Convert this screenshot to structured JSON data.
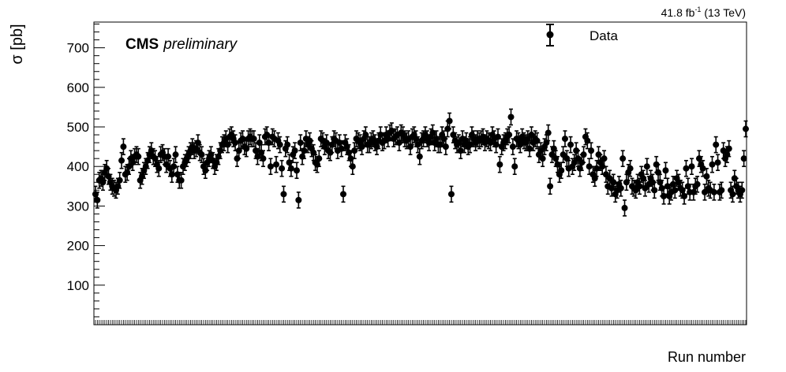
{
  "header": {
    "lumi_value": "41.8 fb",
    "lumi_exp": "-1",
    "lumi_energy": " (13 TeV)"
  },
  "label": {
    "cms": "CMS",
    "preliminary": "preliminary"
  },
  "legend": {
    "entry": "Data"
  },
  "chart_data": {
    "type": "scatter",
    "title": "",
    "xlabel": "Run number",
    "ylabel": "σ [pb]",
    "ylim": [
      0,
      765
    ],
    "yticks": [
      100,
      200,
      300,
      400,
      500,
      600,
      700
    ],
    "legend_position": "top-right",
    "grid": false,
    "series": [
      {
        "name": "Data",
        "values": [
          330,
          315,
          365,
          370,
          360,
          385,
          395,
          375,
          360,
          350,
          345,
          340,
          350,
          365,
          415,
          450,
          380,
          385,
          400,
          420,
          410,
          425,
          430,
          425,
          365,
          375,
          390,
          400,
          415,
          430,
          440,
          425,
          420,
          405,
          395,
          430,
          435,
          425,
          405,
          425,
          395,
          380,
          400,
          430,
          380,
          365,
          365,
          400,
          410,
          420,
          430,
          440,
          450,
          440,
          445,
          460,
          435,
          430,
          400,
          390,
          410,
          420,
          430,
          415,
          400,
          410,
          425,
          440,
          455,
          460,
          470,
          455,
          475,
          480,
          470,
          460,
          420,
          440,
          465,
          470,
          450,
          445,
          470,
          475,
          470,
          470,
          440,
          425,
          460,
          435,
          420,
          475,
          480,
          460,
          400,
          475,
          470,
          405,
          465,
          455,
          395,
          330,
          445,
          455,
          410,
          395,
          430,
          440,
          390,
          315,
          460,
          425,
          440,
          470,
          455,
          465,
          445,
          435,
          410,
          405,
          420,
          470,
          465,
          450,
          460,
          440,
          435,
          455,
          470,
          465,
          440,
          460,
          445,
          330,
          460,
          450,
          435,
          420,
          400,
          440,
          470,
          465,
          460,
          450,
          470,
          480,
          455,
          455,
          465,
          470,
          460,
          450,
          465,
          480,
          460,
          465,
          480,
          470,
          485,
          490,
          470,
          475,
          480,
          460,
          485,
          480,
          470,
          465,
          470,
          450,
          475,
          480,
          470,
          455,
          425,
          465,
          470,
          480,
          470,
          460,
          475,
          485,
          460,
          470,
          455,
          455,
          480,
          470,
          450,
          495,
          515,
          330,
          480,
          465,
          455,
          460,
          440,
          470,
          455,
          465,
          450,
          455,
          480,
          470,
          460,
          470,
          465,
          470,
          475,
          460,
          470,
          465,
          460,
          480,
          470,
          455,
          475,
          405,
          450,
          460,
          465,
          475,
          480,
          525,
          450,
          400,
          470,
          465,
          455,
          475,
          465,
          460,
          470,
          445,
          480,
          460,
          470,
          465,
          430,
          440,
          420,
          450,
          460,
          485,
          350,
          430,
          445,
          420,
          405,
          380,
          390,
          430,
          470,
          420,
          395,
          455,
          400,
          410,
          440,
          420,
          395,
          410,
          430,
          475,
          465,
          400,
          440,
          380,
          370,
          395,
          430,
          410,
          400,
          420,
          380,
          350,
          370,
          345,
          360,
          330,
          340,
          355,
          345,
          420,
          295,
          360,
          385,
          395,
          350,
          345,
          340,
          360,
          350,
          380,
          370,
          345,
          400,
          355,
          370,
          360,
          340,
          405,
          385,
          360,
          345,
          325,
          390,
          350,
          325,
          335,
          355,
          340,
          370,
          360,
          345,
          340,
          325,
          395,
          350,
          335,
          400,
          335,
          350,
          355,
          420,
          405,
          395,
          335,
          375,
          345,
          340,
          405,
          335,
          455,
          410,
          335,
          340,
          440,
          420,
          430,
          445,
          340,
          330,
          370,
          350,
          340,
          330,
          340,
          420,
          495
        ]
      }
    ]
  }
}
